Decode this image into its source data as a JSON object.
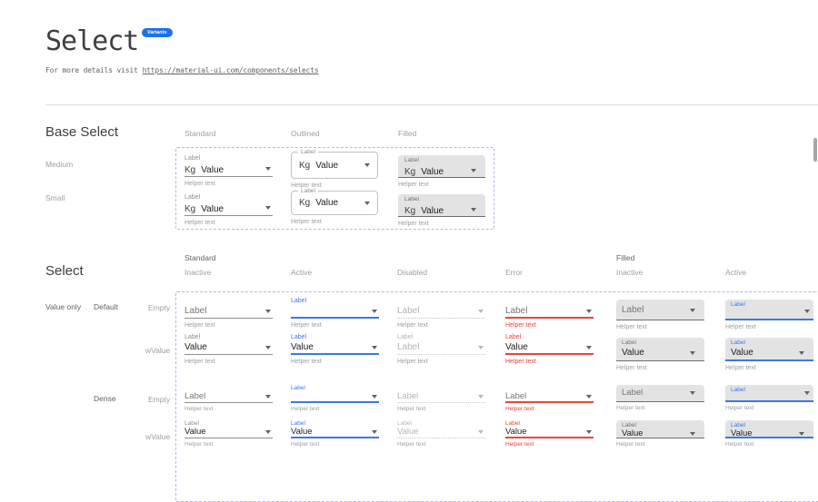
{
  "header": {
    "title": "Select",
    "badge": "Variants",
    "subtitle_prefix": "For more details visit",
    "subtitle_link": "https://material-ui.com/components/selects"
  },
  "labels": {
    "label": "Label",
    "value": "Value",
    "prefix": "Kg",
    "helper": "Helper text"
  },
  "base_select": {
    "heading": "Base Select",
    "columns": [
      "Standard",
      "Outlined",
      "Filled"
    ],
    "rows": [
      "Medium",
      "Small"
    ]
  },
  "select_table": {
    "heading": "Select",
    "group_standard": "Standard",
    "group_filled": "Filled",
    "columns": [
      "Inactive",
      "Active",
      "Disabled",
      "Error",
      "Inactive",
      "Active"
    ],
    "row_group": "Value only",
    "subgroup_default": "Default",
    "subgroup_dense": "Dense",
    "state_empty": "Empty",
    "state_wvalue": "wValue"
  },
  "colors": {
    "accent_badge": "#1a73e8",
    "focus_blue": "#3b78e7",
    "error_red": "#e8453c",
    "filled_bg": "#e3e3e3",
    "dashed_border": "#b6b6ea"
  }
}
